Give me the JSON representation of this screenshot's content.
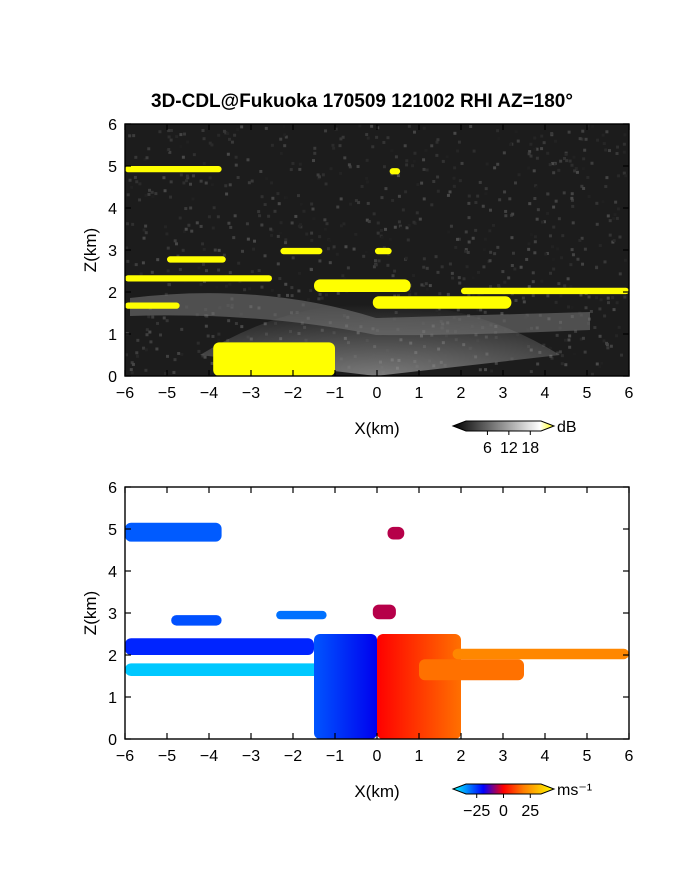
{
  "chart_data": {
    "title": "3D-CDL@Fukuoka 170509 121002 RHI AZ=180°",
    "panels": [
      {
        "type": "heatmap",
        "variable": "backscatter",
        "xlabel": "X(km)",
        "ylabel": "Z(km)",
        "xlim": [
          -6,
          6
        ],
        "ylim": [
          0,
          6
        ],
        "xticks": [
          "−6",
          "−5",
          "−4",
          "−3",
          "−2",
          "−1",
          "0",
          "1",
          "2",
          "3",
          "4",
          "5",
          "6"
        ],
        "yticks": [
          "0",
          "1",
          "2",
          "3",
          "4",
          "5",
          "6"
        ],
        "colorbar": {
          "unit": "dB",
          "ticks": [
            "6",
            "12",
            "18"
          ],
          "values": [
            6,
            12,
            18
          ],
          "range": [
            0,
            21
          ],
          "colors": [
            "#000000",
            "#ffffff",
            "#ffff00"
          ]
        },
        "features": [
          {
            "name": "layer",
            "x": [
              -6.0,
              -3.7
            ],
            "z": [
              4.85,
              5.0
            ],
            "value": 21
          },
          {
            "name": "cell",
            "x": [
              0.3,
              0.55
            ],
            "z": [
              4.8,
              4.95
            ],
            "value": 21
          },
          {
            "name": "layer",
            "x": [
              -5.0,
              -3.6
            ],
            "z": [
              2.7,
              2.85
            ],
            "value": 21
          },
          {
            "name": "layer",
            "x": [
              -2.3,
              -1.3
            ],
            "z": [
              2.9,
              3.05
            ],
            "value": 21
          },
          {
            "name": "cell",
            "x": [
              -0.05,
              0.35
            ],
            "z": [
              2.9,
              3.05
            ],
            "value": 21
          },
          {
            "name": "layer",
            "x": [
              -6.0,
              -2.5
            ],
            "z": [
              2.25,
              2.4
            ],
            "value": 21
          },
          {
            "name": "layer",
            "x": [
              -1.5,
              0.8
            ],
            "z": [
              2.0,
              2.3
            ],
            "value": 21
          },
          {
            "name": "layer",
            "x": [
              -0.1,
              3.2
            ],
            "z": [
              1.6,
              1.9
            ],
            "value": 21
          },
          {
            "name": "layer",
            "x": [
              2.0,
              6.0
            ],
            "z": [
              1.95,
              2.1
            ],
            "value": 21
          },
          {
            "name": "layer",
            "x": [
              -6.0,
              -4.7
            ],
            "z": [
              1.6,
              1.75
            ],
            "value": 21
          },
          {
            "name": "layer",
            "x": [
              -3.9,
              -1.0
            ],
            "z": [
              0.0,
              0.8
            ],
            "value": 21
          }
        ]
      },
      {
        "type": "heatmap",
        "variable": "radial velocity",
        "xlabel": "X(km)",
        "ylabel": "Z(km)",
        "xlim": [
          -6,
          6
        ],
        "ylim": [
          0,
          6
        ],
        "xticks": [
          "−6",
          "−5",
          "−4",
          "−3",
          "−2",
          "−1",
          "0",
          "1",
          "2",
          "3",
          "4",
          "5",
          "6"
        ],
        "yticks": [
          "0",
          "1",
          "2",
          "3",
          "4",
          "5",
          "6"
        ],
        "colorbar": {
          "unit": "ms⁻¹",
          "ticks": [
            "−25",
            "0",
            "25"
          ],
          "values": [
            -25,
            0,
            25
          ],
          "range": [
            -35,
            35
          ],
          "colors": [
            "#00ffff",
            "#0000ff",
            "#ff0000",
            "#ffff00"
          ]
        },
        "features": [
          {
            "name": "layer",
            "x": [
              -6.0,
              -3.7
            ],
            "z": [
              4.7,
              5.15
            ],
            "value": -20
          },
          {
            "name": "cell",
            "x": [
              0.25,
              0.65
            ],
            "z": [
              4.75,
              5.05
            ],
            "value": 5
          },
          {
            "name": "layer",
            "x": [
              -4.9,
              -3.7
            ],
            "z": [
              2.7,
              2.95
            ],
            "value": -19
          },
          {
            "name": "layer",
            "x": [
              -2.4,
              -1.2
            ],
            "z": [
              2.85,
              3.05
            ],
            "value": -22
          },
          {
            "name": "cell",
            "x": [
              -0.1,
              0.45
            ],
            "z": [
              2.85,
              3.2
            ],
            "value": 5
          },
          {
            "name": "layer",
            "x": [
              -6.0,
              -1.5
            ],
            "z": [
              2.0,
              2.4
            ],
            "value": -15
          },
          {
            "name": "layer",
            "x": [
              -6.0,
              -1.0
            ],
            "z": [
              1.5,
              1.8
            ],
            "value": -30
          },
          {
            "name": "core",
            "x": [
              -1.5,
              0.0
            ],
            "z": [
              0.0,
              2.5
            ],
            "value": -22
          },
          {
            "name": "core",
            "x": [
              0.0,
              2.0
            ],
            "z": [
              0.0,
              2.5
            ],
            "value": 6
          },
          {
            "name": "layer",
            "x": [
              1.0,
              3.5
            ],
            "z": [
              1.4,
              1.9
            ],
            "value": 22
          },
          {
            "name": "layer",
            "x": [
              1.8,
              6.0
            ],
            "z": [
              1.9,
              2.15
            ],
            "value": 24
          }
        ]
      }
    ]
  }
}
